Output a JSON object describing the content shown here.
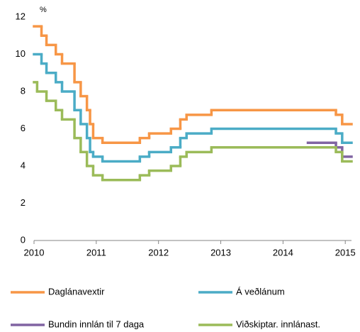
{
  "chart_data": {
    "type": "step",
    "unit_label": "%",
    "xlim": [
      2010,
      2015.1
    ],
    "xticks": [
      2010,
      2011,
      2012,
      2013,
      2014,
      2015
    ],
    "ylim": [
      0,
      12
    ],
    "yticks": [
      0,
      2,
      4,
      6,
      8,
      10,
      12
    ],
    "grid": false,
    "legend": "bottom",
    "series": [
      {
        "name": "Daglánavextir",
        "color": "#f79646",
        "x": [
          2010,
          2010.12,
          2010.2,
          2010.35,
          2010.45,
          2010.65,
          2010.75,
          2010.85,
          2010.9,
          2010.95,
          2011.1,
          2011.7,
          2011.85,
          2012.2,
          2012.35,
          2012.45,
          2012.85,
          2014.85,
          2014.95
        ],
        "values": [
          11.5,
          11.0,
          10.5,
          10.0,
          9.5,
          8.5,
          7.75,
          7.0,
          6.25,
          5.5,
          5.25,
          5.5,
          5.75,
          6.0,
          6.5,
          6.75,
          7.0,
          6.75,
          6.25
        ]
      },
      {
        "name": "Á veðlánum",
        "color": "#4bacc6",
        "x": [
          2010,
          2010.12,
          2010.2,
          2010.35,
          2010.45,
          2010.65,
          2010.75,
          2010.85,
          2010.9,
          2010.95,
          2011.1,
          2011.7,
          2011.85,
          2012.2,
          2012.35,
          2012.45,
          2012.85,
          2014.85,
          2014.95
        ],
        "values": [
          10.0,
          9.5,
          9.0,
          8.5,
          8.0,
          7.0,
          6.25,
          5.5,
          4.75,
          4.5,
          4.25,
          4.5,
          4.75,
          5.0,
          5.5,
          5.75,
          6.0,
          5.75,
          5.25
        ]
      },
      {
        "name": "Bundin innlán til 7 daga",
        "color": "#8064a2",
        "x": [
          2014.4,
          2014.85,
          2014.95
        ],
        "values": [
          5.25,
          5.0,
          4.5
        ]
      },
      {
        "name": "Viðskiptar. innlánast.",
        "color": "#9bbb59",
        "x": [
          2010,
          2010.05,
          2010.2,
          2010.35,
          2010.45,
          2010.65,
          2010.75,
          2010.85,
          2010.95,
          2011.1,
          2011.7,
          2011.85,
          2012.2,
          2012.35,
          2012.45,
          2012.85,
          2014.85,
          2014.95
        ],
        "values": [
          8.5,
          8.0,
          7.5,
          7.0,
          6.5,
          5.5,
          4.75,
          4.0,
          3.5,
          3.25,
          3.5,
          3.75,
          4.0,
          4.5,
          4.75,
          5.0,
          4.75,
          4.25
        ]
      }
    ]
  }
}
